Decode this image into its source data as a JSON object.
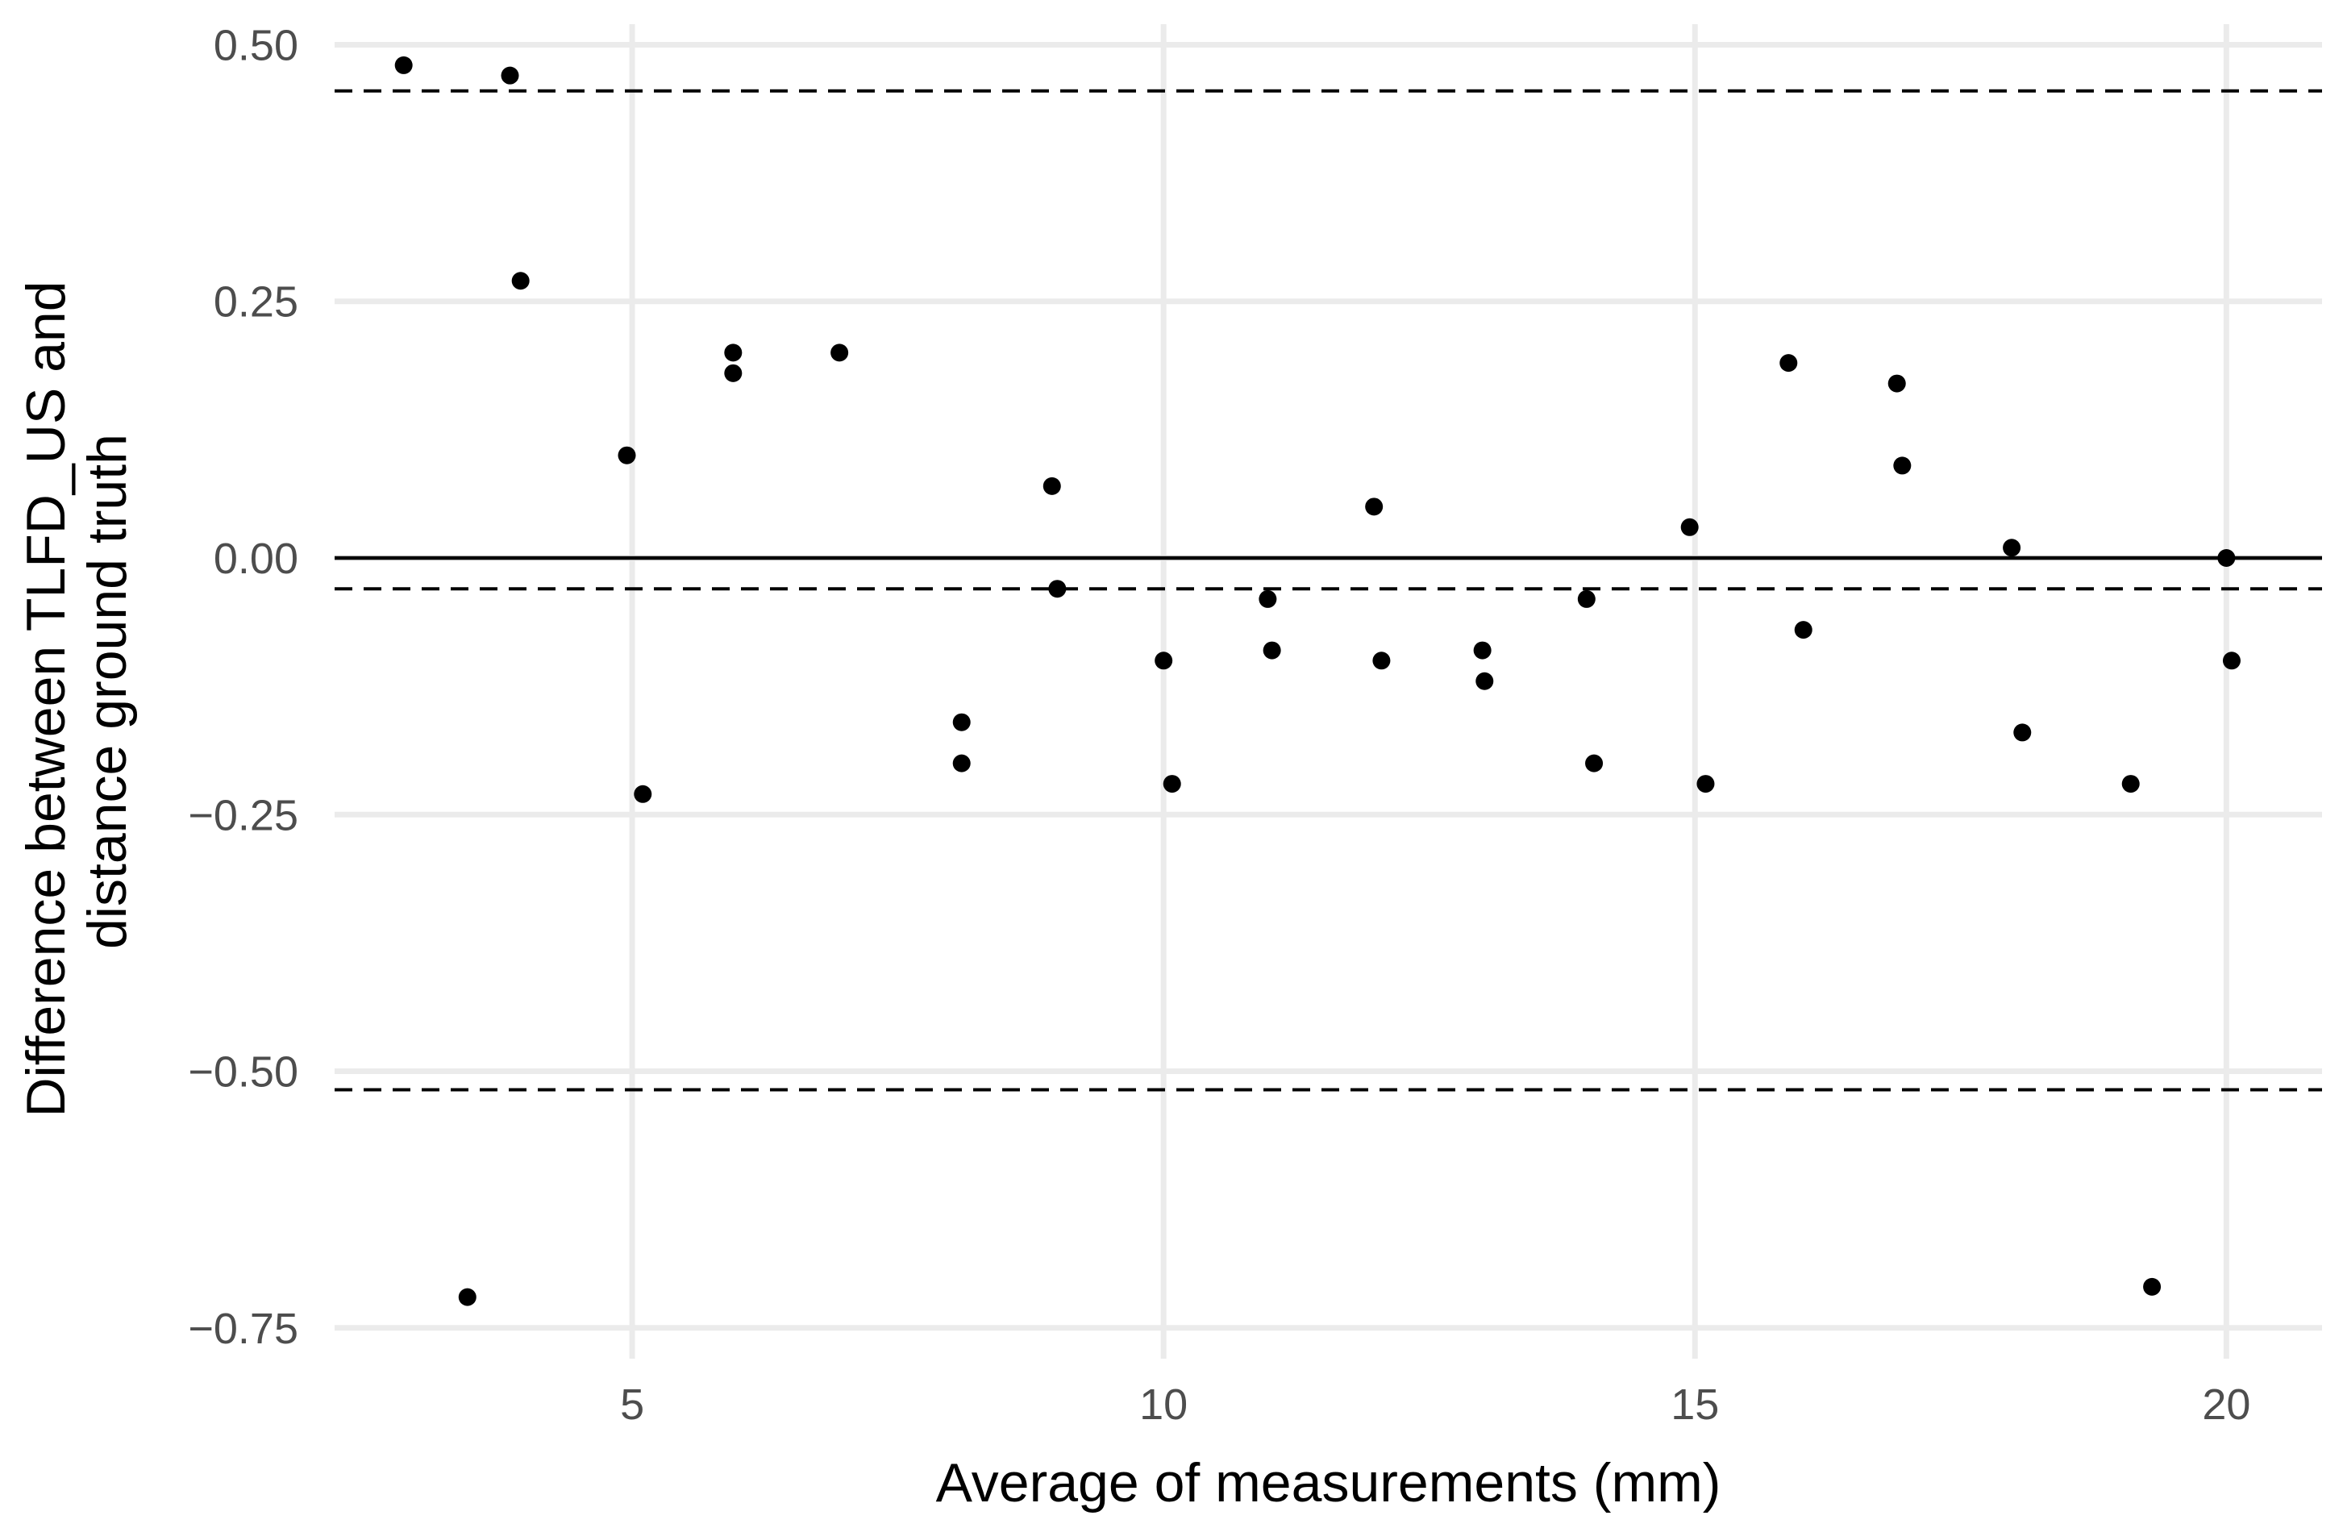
{
  "chart_data": {
    "type": "scatter",
    "title": "",
    "xlabel": "Average of measurements (mm)",
    "ylabel_lines": [
      "Difference between TLFD_US and",
      "distance ground truth"
    ],
    "xlim": [
      2.2,
      20.9
    ],
    "ylim": [
      -0.78,
      0.52
    ],
    "x_ticks": [
      5,
      10,
      15,
      20
    ],
    "x_tick_labels": [
      "5",
      "10",
      "15",
      "20"
    ],
    "y_ticks": [
      0.5,
      0.25,
      0,
      -0.25,
      -0.5,
      -0.75
    ],
    "y_tick_labels": [
      "0.50",
      "0.25",
      "0.00",
      "−0.25",
      "−0.50",
      "−0.75"
    ],
    "grid": true,
    "legend": "none",
    "zero_line": 0,
    "mean_difference": -0.03,
    "limits_of_agreement": [
      0.455,
      -0.518
    ],
    "points": [
      {
        "x": 2.85,
        "y": 0.48
      },
      {
        "x": 3.85,
        "y": 0.47
      },
      {
        "x": 3.95,
        "y": 0.27
      },
      {
        "x": 3.45,
        "y": -0.72
      },
      {
        "x": 4.95,
        "y": 0.1
      },
      {
        "x": 5.1,
        "y": -0.23
      },
      {
        "x": 5.95,
        "y": 0.2
      },
      {
        "x": 5.95,
        "y": 0.18
      },
      {
        "x": 6.95,
        "y": 0.2
      },
      {
        "x": 8.1,
        "y": -0.16
      },
      {
        "x": 8.1,
        "y": -0.2
      },
      {
        "x": 8.95,
        "y": 0.07
      },
      {
        "x": 9.0,
        "y": -0.03
      },
      {
        "x": 10.0,
        "y": -0.1
      },
      {
        "x": 10.08,
        "y": -0.22
      },
      {
        "x": 10.98,
        "y": -0.04
      },
      {
        "x": 11.02,
        "y": -0.09
      },
      {
        "x": 11.98,
        "y": 0.05
      },
      {
        "x": 12.05,
        "y": -0.1
      },
      {
        "x": 13.0,
        "y": -0.09
      },
      {
        "x": 13.02,
        "y": -0.12
      },
      {
        "x": 13.98,
        "y": -0.04
      },
      {
        "x": 14.05,
        "y": -0.2
      },
      {
        "x": 14.95,
        "y": 0.03
      },
      {
        "x": 15.1,
        "y": -0.22
      },
      {
        "x": 15.88,
        "y": 0.19
      },
      {
        "x": 16.02,
        "y": -0.07
      },
      {
        "x": 16.9,
        "y": 0.17
      },
      {
        "x": 16.95,
        "y": 0.09
      },
      {
        "x": 17.98,
        "y": 0.01
      },
      {
        "x": 18.08,
        "y": -0.17
      },
      {
        "x": 19.1,
        "y": -0.22
      },
      {
        "x": 19.3,
        "y": -0.71
      },
      {
        "x": 20.0,
        "y": 0.0
      },
      {
        "x": 20.05,
        "y": -0.1
      }
    ]
  },
  "colors": {
    "points": "#000000",
    "grid": "#ebebeb",
    "tick_text": "#4d4d4d",
    "axis_text": "#000000"
  }
}
